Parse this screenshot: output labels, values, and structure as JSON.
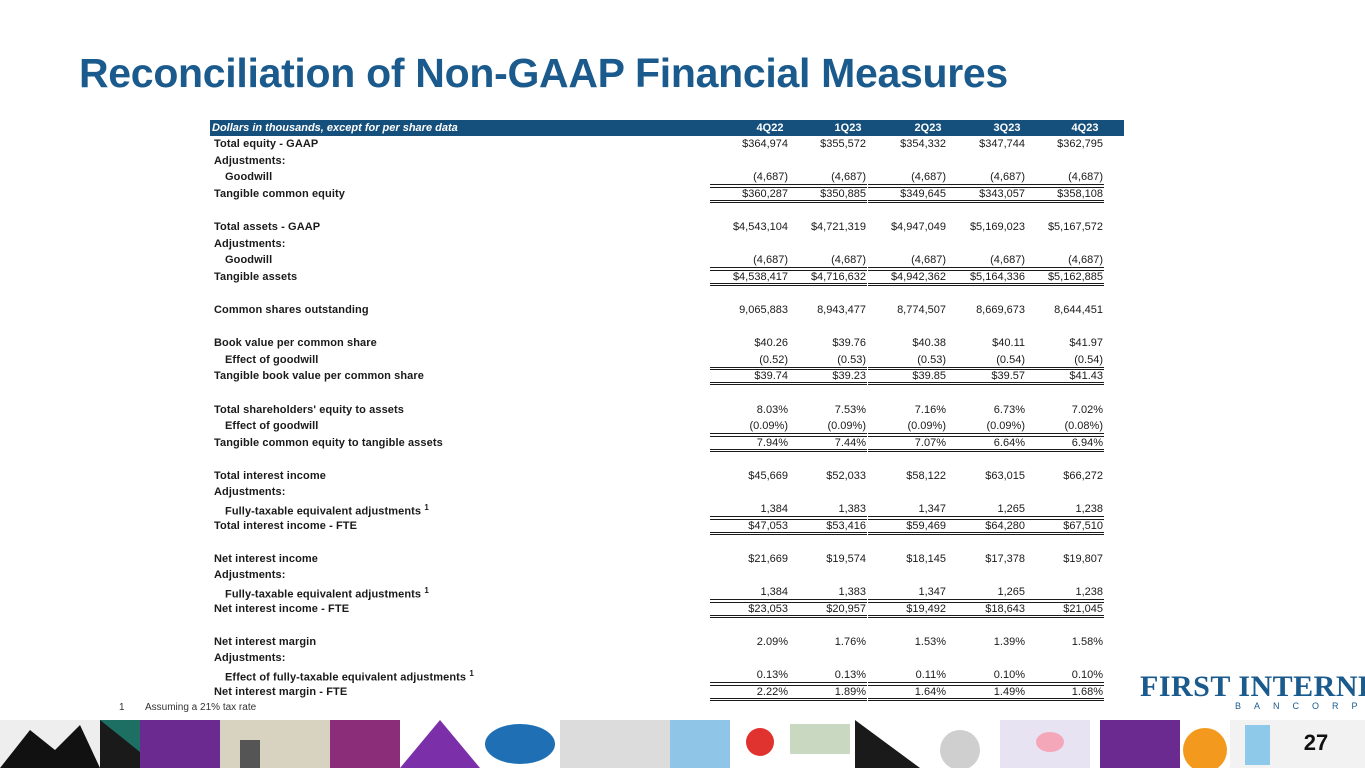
{
  "title": "Reconciliation of Non-GAAP Financial Measures",
  "header": {
    "caption": "Dollars in thousands, except for per share data",
    "columns": [
      "4Q22",
      "1Q23",
      "2Q23",
      "3Q23",
      "4Q23"
    ]
  },
  "rows": [
    {
      "label": "Total equity - GAAP",
      "indent": false,
      "sup": "",
      "values": [
        "$364,974",
        "$355,572",
        "$354,332",
        "$347,744",
        "$362,795"
      ],
      "style": ""
    },
    {
      "label": "Adjustments:",
      "indent": false,
      "sup": "",
      "values": [],
      "style": ""
    },
    {
      "label": "Goodwill",
      "indent": true,
      "sup": "",
      "values": [
        "(4,687)",
        "(4,687)",
        "(4,687)",
        "(4,687)",
        "(4,687)"
      ],
      "style": ""
    },
    {
      "label": "Tangible common equity",
      "indent": false,
      "sup": "",
      "values": [
        "$360,287",
        "$350,885",
        "$349,645",
        "$343,057",
        "$358,108"
      ],
      "style": "dbl"
    },
    {
      "label": "",
      "indent": false,
      "sup": "",
      "values": [],
      "style": ""
    },
    {
      "label": "Total assets - GAAP",
      "indent": false,
      "sup": "",
      "values": [
        "$4,543,104",
        "$4,721,319",
        "$4,947,049",
        "$5,169,023",
        "$5,167,572"
      ],
      "style": ""
    },
    {
      "label": "Adjustments:",
      "indent": false,
      "sup": "",
      "values": [],
      "style": ""
    },
    {
      "label": "Goodwill",
      "indent": true,
      "sup": "",
      "values": [
        "(4,687)",
        "(4,687)",
        "(4,687)",
        "(4,687)",
        "(4,687)"
      ],
      "style": ""
    },
    {
      "label": "Tangible assets",
      "indent": false,
      "sup": "",
      "values": [
        "$4,538,417",
        "$4,716,632",
        "$4,942,362",
        "$5,164,336",
        "$5,162,885"
      ],
      "style": "dbl"
    },
    {
      "label": "",
      "indent": false,
      "sup": "",
      "values": [],
      "style": ""
    },
    {
      "label": "Common shares outstanding",
      "indent": false,
      "sup": "",
      "values": [
        "9,065,883",
        "8,943,477",
        "8,774,507",
        "8,669,673",
        "8,644,451"
      ],
      "style": ""
    },
    {
      "label": "",
      "indent": false,
      "sup": "",
      "values": [],
      "style": ""
    },
    {
      "label": "Book value per common share",
      "indent": false,
      "sup": "",
      "values": [
        "$40.26",
        "$39.76",
        "$40.38",
        "$40.11",
        "$41.97"
      ],
      "style": ""
    },
    {
      "label": "Effect of goodwill",
      "indent": true,
      "sup": "",
      "values": [
        "(0.52)",
        "(0.53)",
        "(0.53)",
        "(0.54)",
        "(0.54)"
      ],
      "style": ""
    },
    {
      "label": "Tangible book value per common share",
      "indent": false,
      "sup": "",
      "values": [
        "$39.74",
        "$39.23",
        "$39.85",
        "$39.57",
        "$41.43"
      ],
      "style": "dbl"
    },
    {
      "label": "",
      "indent": false,
      "sup": "",
      "values": [],
      "style": ""
    },
    {
      "label": "Total shareholders' equity to assets",
      "indent": false,
      "sup": "",
      "values": [
        "8.03%",
        "7.53%",
        "7.16%",
        "6.73%",
        "7.02%"
      ],
      "style": ""
    },
    {
      "label": "Effect of goodwill",
      "indent": true,
      "sup": "",
      "values": [
        "(0.09%)",
        "(0.09%)",
        "(0.09%)",
        "(0.09%)",
        "(0.08%)"
      ],
      "style": ""
    },
    {
      "label": "Tangible common equity to tangible assets",
      "indent": false,
      "sup": "",
      "values": [
        "7.94%",
        "7.44%",
        "7.07%",
        "6.64%",
        "6.94%"
      ],
      "style": "dbl"
    },
    {
      "label": "",
      "indent": false,
      "sup": "",
      "values": [],
      "style": ""
    },
    {
      "label": "Total interest income",
      "indent": false,
      "sup": "",
      "values": [
        "$45,669",
        "$52,033",
        "$58,122",
        "$63,015",
        "$66,272"
      ],
      "style": ""
    },
    {
      "label": "Adjustments:",
      "indent": false,
      "sup": "",
      "values": [],
      "style": ""
    },
    {
      "label": "Fully-taxable equivalent adjustments",
      "indent": true,
      "sup": "1",
      "values": [
        "1,384",
        "1,383",
        "1,347",
        "1,265",
        "1,238"
      ],
      "style": ""
    },
    {
      "label": "Total interest income - FTE",
      "indent": false,
      "sup": "",
      "values": [
        "$47,053",
        "$53,416",
        "$59,469",
        "$64,280",
        "$67,510"
      ],
      "style": "dbl"
    },
    {
      "label": "",
      "indent": false,
      "sup": "",
      "values": [],
      "style": ""
    },
    {
      "label": "Net interest income",
      "indent": false,
      "sup": "",
      "values": [
        "$21,669",
        "$19,574",
        "$18,145",
        "$17,378",
        "$19,807"
      ],
      "style": ""
    },
    {
      "label": "Adjustments:",
      "indent": false,
      "sup": "",
      "values": [],
      "style": ""
    },
    {
      "label": "Fully-taxable equivalent adjustments",
      "indent": true,
      "sup": "1",
      "values": [
        "1,384",
        "1,383",
        "1,347",
        "1,265",
        "1,238"
      ],
      "style": ""
    },
    {
      "label": "Net interest income - FTE",
      "indent": false,
      "sup": "",
      "values": [
        "$23,053",
        "$20,957",
        "$19,492",
        "$18,643",
        "$21,045"
      ],
      "style": "dbl"
    },
    {
      "label": "",
      "indent": false,
      "sup": "",
      "values": [],
      "style": ""
    },
    {
      "label": "Net interest margin",
      "indent": false,
      "sup": "",
      "values": [
        "2.09%",
        "1.76%",
        "1.53%",
        "1.39%",
        "1.58%"
      ],
      "style": ""
    },
    {
      "label": "Adjustments:",
      "indent": false,
      "sup": "",
      "values": [],
      "style": ""
    },
    {
      "label": "Effect of fully-taxable equivalent adjustments",
      "indent": true,
      "sup": "1",
      "values": [
        "0.13%",
        "0.13%",
        "0.11%",
        "0.10%",
        "0.10%"
      ],
      "style": ""
    },
    {
      "label": "Net interest margin - FTE",
      "indent": false,
      "sup": "",
      "values": [
        "2.22%",
        "1.89%",
        "1.64%",
        "1.49%",
        "1.68%"
      ],
      "style": "dbl"
    }
  ],
  "footnote": {
    "number": "1",
    "text": "Assuming a 21% tax rate"
  },
  "logo": {
    "main": "FIRST INTERNET",
    "sub": "BANCORP"
  },
  "page_number": "27",
  "colors": {
    "brand": "#1a5a8c",
    "header_bg": "#154f7c"
  }
}
